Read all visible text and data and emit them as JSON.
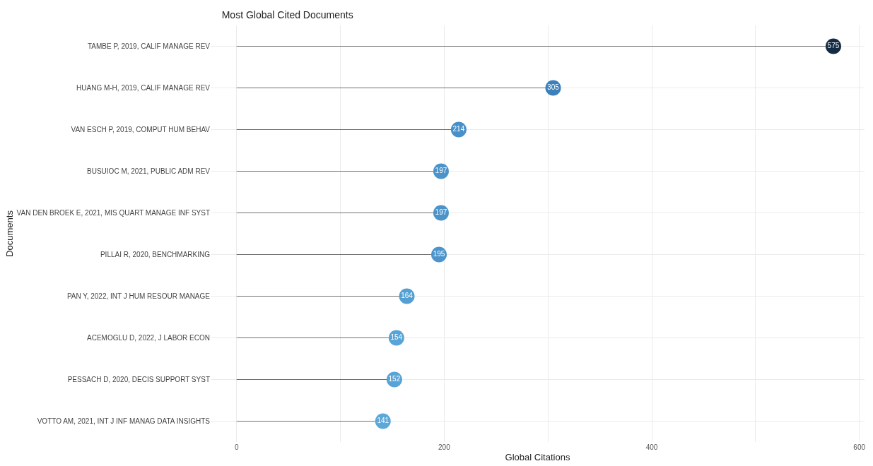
{
  "chart_data": {
    "type": "lollipop",
    "orientation": "horizontal",
    "title": "Most Global Cited Documents",
    "xlabel": "Global Citations",
    "ylabel": "Documents",
    "categories": [
      "TAMBE P, 2019, CALIF MANAGE REV",
      "HUANG M-H, 2019, CALIF MANAGE REV",
      "VAN ESCH P, 2019, COMPUT HUM BEHAV",
      "BUSUIOC M, 2021, PUBLIC ADM REV",
      "VAN DEN BROEK E, 2021, MIS QUART MANAGE INF SYST",
      "PILLAI R, 2020, BENCHMARKING",
      "PAN Y, 2022, INT J HUM RESOUR MANAGE",
      "ACEMOGLU D, 2022, J LABOR ECON",
      "PESSACH D, 2020, DECIS SUPPORT SYST",
      "VOTTO AM, 2021, INT J INF MANAG DATA INSIGHTS"
    ],
    "values": [
      575,
      305,
      214,
      197,
      197,
      195,
      164,
      154,
      152,
      141
    ],
    "colors": [
      "#132b43",
      "#3a80ba",
      "#4a90c8",
      "#4c93ca",
      "#4c93ca",
      "#4c94cb",
      "#55a0d3",
      "#58a4d6",
      "#58a4d6",
      "#5ba8d9"
    ],
    "xlim": [
      -25,
      605
    ],
    "xticks": [
      0,
      {
        "value": 100,
        "label": null
      },
      200,
      {
        "value": 300,
        "label": null
      },
      400,
      {
        "value": 500,
        "label": null
      },
      600
    ],
    "grid": true,
    "data_labels": true
  }
}
